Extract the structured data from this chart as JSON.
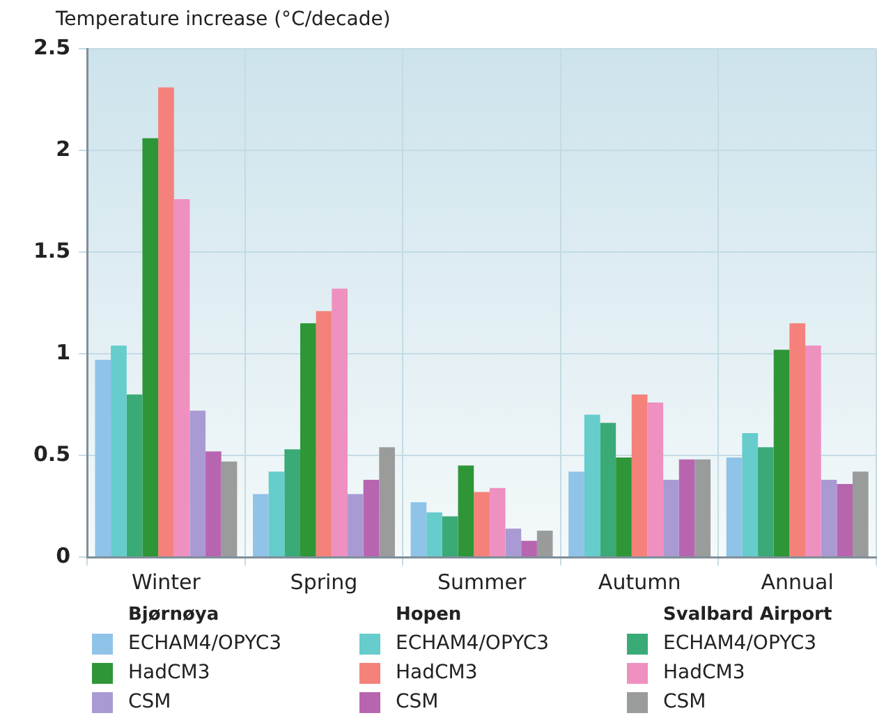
{
  "chart_data": {
    "type": "bar",
    "ylabel": "Temperature increase (°C/decade)",
    "categories": [
      "Winter",
      "Spring",
      "Summer",
      "Autumn",
      "Annual"
    ],
    "series": [
      {
        "name": "ECHAM4/OPYC3",
        "color": "#8fc3e8",
        "values": [
          0.97,
          0.31,
          0.27,
          0.42,
          0.49
        ]
      },
      {
        "name": "ECHAM4/OPYC3",
        "color": "#66cccc",
        "values": [
          1.04,
          0.42,
          0.22,
          0.7,
          0.61
        ]
      },
      {
        "name": "ECHAM4/OPYC3",
        "color": "#3aaa77",
        "values": [
          0.8,
          0.53,
          0.2,
          0.66,
          0.54
        ]
      },
      {
        "name": "HadCM3",
        "color": "#2e9637",
        "values": [
          2.06,
          1.15,
          0.45,
          0.49,
          1.02
        ]
      },
      {
        "name": "HadCM3",
        "color": "#f4827a",
        "values": [
          2.31,
          1.21,
          0.32,
          0.8,
          1.15
        ]
      },
      {
        "name": "HadCM3",
        "color": "#ee90c0",
        "values": [
          1.76,
          1.32,
          0.34,
          0.76,
          1.04
        ]
      },
      {
        "name": "CSM",
        "color": "#a99ad4",
        "values": [
          0.72,
          0.31,
          0.14,
          0.38,
          0.38
        ]
      },
      {
        "name": "CSM",
        "color": "#b865b0",
        "values": [
          0.52,
          0.38,
          0.08,
          0.48,
          0.36
        ]
      },
      {
        "name": "CSM",
        "color": "#9a9c9c",
        "values": [
          0.47,
          0.54,
          0.13,
          0.48,
          0.42
        ]
      }
    ],
    "annotations": [
      "Bjørnøya",
      "Hopen",
      "Svalbard Airport"
    ],
    "ylim": [
      0,
      2.5
    ],
    "yticks": [
      0,
      0.5,
      1,
      1.5,
      2,
      2.5
    ],
    "grid": true,
    "legend": "bottom"
  }
}
